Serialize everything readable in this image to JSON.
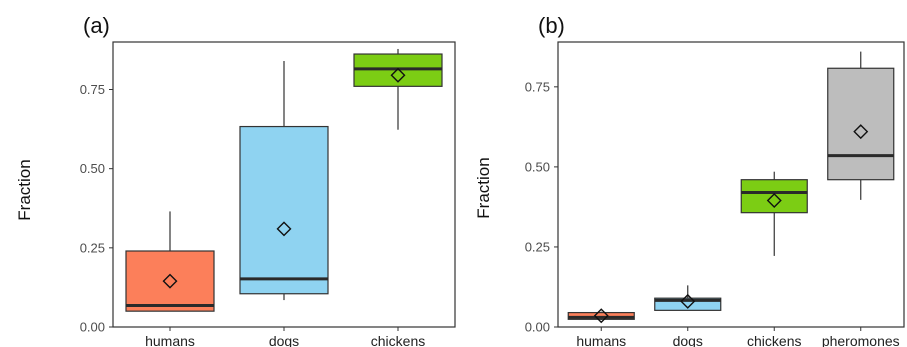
{
  "chart_data": [
    {
      "type": "box",
      "panel_label": "(a)",
      "ylabel": "Fraction",
      "ylim": [
        0,
        0.9
      ],
      "yticks": [
        0.0,
        0.25,
        0.5,
        0.75
      ],
      "ytick_labels": [
        "0.00",
        "0.25",
        "0.50",
        "0.75"
      ],
      "grid": false,
      "categories": [
        "humans",
        "dogs",
        "chickens"
      ],
      "colors": [
        "#fc7f5a",
        "#8fd3f1",
        "#7ccd14"
      ],
      "boxes": [
        {
          "category": "humans",
          "whisker_low": 0.05,
          "q1": 0.05,
          "median": 0.068,
          "q3": 0.24,
          "whisker_high": 0.365,
          "mean": 0.145
        },
        {
          "category": "dogs",
          "whisker_low": 0.085,
          "q1": 0.105,
          "median": 0.152,
          "q3": 0.633,
          "whisker_high": 0.84,
          "mean": 0.31
        },
        {
          "category": "chickens",
          "whisker_low": 0.623,
          "q1": 0.76,
          "median": 0.815,
          "q3": 0.862,
          "whisker_high": 0.878,
          "mean": 0.795
        }
      ]
    },
    {
      "type": "box",
      "panel_label": "(b)",
      "ylabel": "Fraction",
      "ylim": [
        0,
        0.89
      ],
      "yticks": [
        0.0,
        0.25,
        0.5,
        0.75
      ],
      "ytick_labels": [
        "0.00",
        "0.25",
        "0.50",
        "0.75"
      ],
      "grid": false,
      "categories": [
        "humans",
        "dogs",
        "chickens",
        "pheromones"
      ],
      "colors": [
        "#fc7f5a",
        "#8fd3f1",
        "#7ccd14",
        "#bdbdbd"
      ],
      "boxes": [
        {
          "category": "humans",
          "whisker_low": 0.022,
          "q1": 0.024,
          "median": 0.03,
          "q3": 0.045,
          "whisker_high": 0.048,
          "mean": 0.035
        },
        {
          "category": "dogs",
          "whisker_low": 0.052,
          "q1": 0.052,
          "median": 0.083,
          "q3": 0.09,
          "whisker_high": 0.13,
          "mean": 0.08
        },
        {
          "category": "chickens",
          "whisker_low": 0.222,
          "q1": 0.357,
          "median": 0.42,
          "q3": 0.46,
          "whisker_high": 0.485,
          "mean": 0.395
        },
        {
          "category": "pheromones",
          "whisker_low": 0.397,
          "q1": 0.46,
          "median": 0.535,
          "q3": 0.808,
          "whisker_high": 0.86,
          "mean": 0.61
        }
      ]
    }
  ]
}
